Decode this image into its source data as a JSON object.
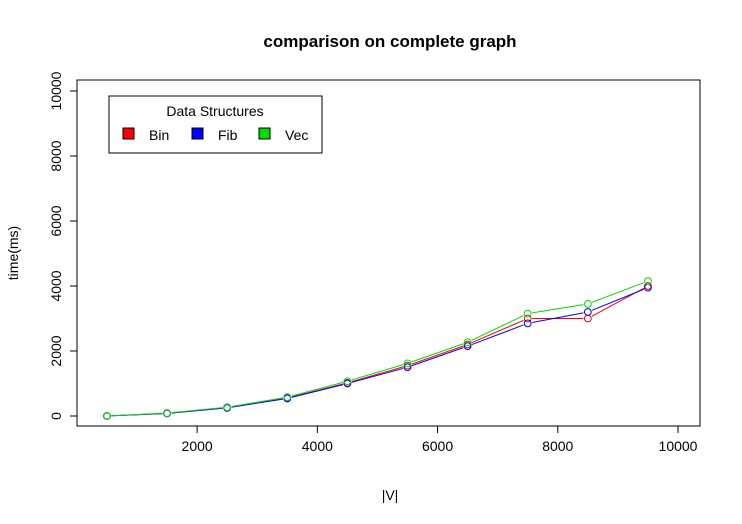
{
  "chart_data": {
    "type": "line",
    "title": "comparison on complete graph",
    "xlabel": "|V|",
    "ylabel": "time(ms)",
    "xlim": [
      0,
      10000
    ],
    "ylim": [
      0,
      10000
    ],
    "xticks": [
      2000,
      4000,
      6000,
      8000,
      10000
    ],
    "yticks": [
      0,
      2000,
      4000,
      6000,
      8000,
      10000
    ],
    "grid": false,
    "markers": "open-circle",
    "x": [
      500,
      1500,
      2500,
      3500,
      4500,
      5500,
      6500,
      7500,
      8500,
      9500
    ],
    "series": [
      {
        "name": "Bin",
        "color": "#ff0000",
        "values": [
          0,
          80,
          250,
          550,
          1020,
          1550,
          2200,
          3000,
          3000,
          4000
        ]
      },
      {
        "name": "Fib",
        "color": "#0000ff",
        "values": [
          0,
          80,
          250,
          540,
          1000,
          1500,
          2150,
          2850,
          3200,
          3950
        ]
      },
      {
        "name": "Vec",
        "color": "#00dd00",
        "values": [
          0,
          90,
          270,
          580,
          1070,
          1620,
          2270,
          3150,
          3450,
          4150
        ]
      }
    ],
    "legend": {
      "title": "Data Structures",
      "position": "top-left",
      "entries": [
        "Bin",
        "Fib",
        "Vec"
      ]
    }
  }
}
